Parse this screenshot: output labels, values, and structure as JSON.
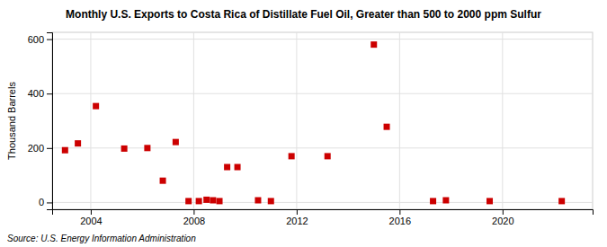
{
  "chart_data": {
    "type": "scatter",
    "title": "Monthly U.S. Exports to Costa Rica of Distillate Fuel Oil, Greater than 500 to 2000 ppm Sulfur",
    "y_label": "Thousand Barrels",
    "source": "Source: U.S. Energy Information Administration",
    "x": [
      2003.0,
      2003.5,
      2004.2,
      2005.3,
      2006.2,
      2006.8,
      2007.3,
      2007.8,
      2008.2,
      2008.5,
      2008.75,
      2009.0,
      2009.3,
      2009.7,
      2010.5,
      2011.0,
      2011.8,
      2013.2,
      2015.0,
      2015.5,
      2017.3,
      2017.8,
      2019.5,
      2022.3
    ],
    "values": [
      192,
      217,
      354,
      198,
      200,
      80,
      222,
      5,
      5,
      10,
      8,
      5,
      130,
      130,
      8,
      5,
      170,
      170,
      580,
      278,
      5,
      8,
      5,
      5
    ],
    "xlim": [
      2002.5,
      2023.5
    ],
    "ylim": [
      -25,
      625
    ],
    "xticks": [
      2004,
      2008,
      2012,
      2016,
      2020
    ],
    "yticks": [
      0,
      200,
      400,
      600
    ],
    "color": "#cc0000",
    "marker": "square",
    "grid": true
  }
}
